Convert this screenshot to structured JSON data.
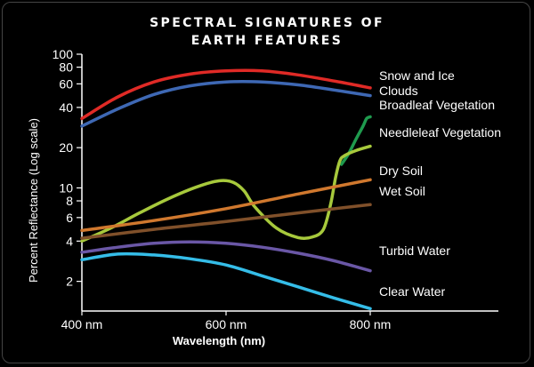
{
  "title_lines": [
    "SPECTRAL SIGNATURES OF",
    "EARTH FEATURES"
  ],
  "chart_data": {
    "type": "line",
    "title": "Spectral Signatures of Earth Features",
    "xlabel": "Wavelength (nm)",
    "ylabel": "Percent Reflectance (Log scale)",
    "x_scale": "linear",
    "y_scale": "log",
    "xlim": [
      400,
      800
    ],
    "ylim": [
      1.2,
      100
    ],
    "x_ticks": [
      400,
      600,
      800
    ],
    "x_tick_labels": [
      "400 nm",
      "600 nm",
      "800 nm"
    ],
    "y_ticks": [
      2,
      4,
      6,
      8,
      10,
      20,
      40,
      60,
      80,
      100
    ],
    "y_tick_labels": [
      "2",
      "4",
      "6",
      "8",
      "10",
      "20",
      "40",
      "60",
      "80",
      "100"
    ],
    "grid": false,
    "legend": "labels at line ends (right)",
    "series": [
      {
        "name": "Snow and Ice",
        "color": "#e02a26",
        "x": [
          400,
          450,
          500,
          550,
          600,
          650,
          700,
          750,
          800
        ],
        "y": [
          33,
          48,
          62,
          71,
          75,
          75,
          70,
          63,
          56
        ]
      },
      {
        "name": "Clouds",
        "color": "#3e68b4",
        "x": [
          400,
          450,
          500,
          550,
          600,
          650,
          700,
          750,
          800
        ],
        "y": [
          29,
          39,
          50,
          58,
          62,
          62,
          59,
          54,
          49
        ]
      },
      {
        "name": "Broadleaf Vegetation",
        "color": "#1f9a4e",
        "x": [
          760,
          770,
          780,
          790,
          795,
          800
        ],
        "y": [
          15,
          18,
          23,
          29,
          33,
          34
        ]
      },
      {
        "name": "Needleleaf Vegetation",
        "color": "#a7c93c",
        "x": [
          400,
          440,
          480,
          520,
          560,
          590,
          610,
          625,
          640,
          670,
          700,
          720,
          735,
          745,
          752,
          758,
          765,
          780,
          800
        ],
        "y": [
          4.0,
          5.0,
          6.5,
          8.3,
          10.2,
          11.3,
          11.0,
          9.5,
          7.2,
          5.0,
          4.25,
          4.3,
          4.9,
          7.5,
          12,
          16,
          17.5,
          19,
          20.5
        ]
      },
      {
        "name": "Dry Soil",
        "color": "#d0782e",
        "x": [
          400,
          500,
          600,
          700,
          800
        ],
        "y": [
          4.8,
          5.7,
          7.0,
          9.0,
          11.5
        ]
      },
      {
        "name": "Wet Soil",
        "color": "#80502a",
        "x": [
          400,
          500,
          600,
          700,
          800
        ],
        "y": [
          4.2,
          4.9,
          5.6,
          6.5,
          7.5
        ]
      },
      {
        "name": "Turbid Water",
        "color": "#6a57a6",
        "x": [
          400,
          450,
          500,
          550,
          600,
          650,
          700,
          750,
          800
        ],
        "y": [
          3.3,
          3.6,
          3.85,
          3.95,
          3.85,
          3.6,
          3.25,
          2.85,
          2.4
        ]
      },
      {
        "name": "Clear Water",
        "color": "#35bde8",
        "x": [
          400,
          450,
          500,
          550,
          600,
          650,
          700,
          750,
          800
        ],
        "y": [
          2.9,
          3.2,
          3.15,
          2.95,
          2.65,
          2.2,
          1.82,
          1.5,
          1.25
        ]
      }
    ]
  }
}
